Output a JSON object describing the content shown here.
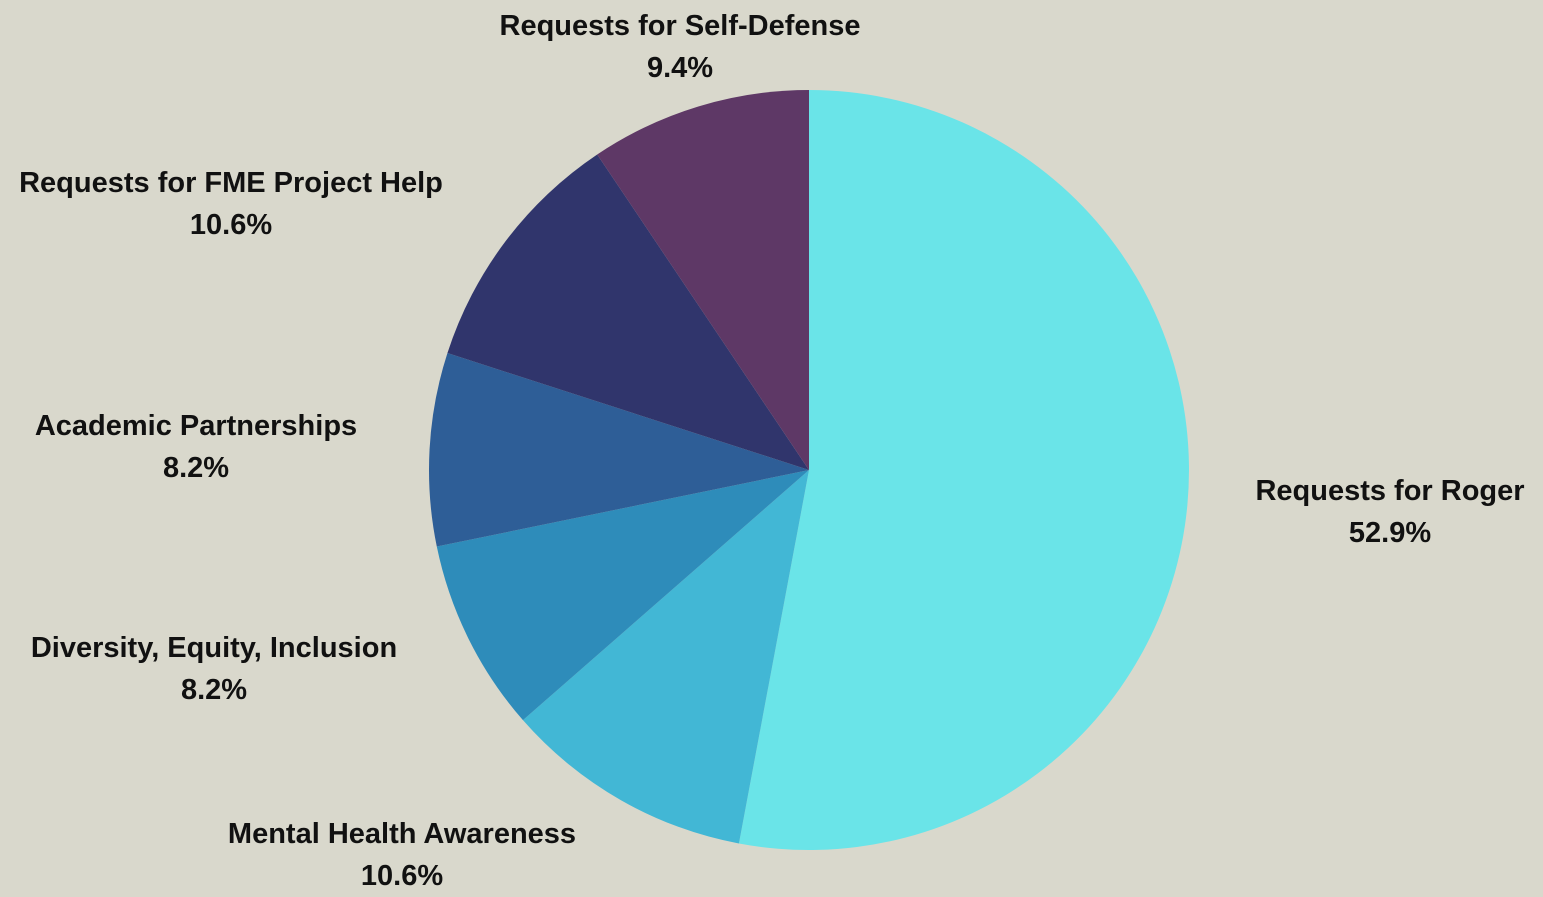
{
  "chart_data": {
    "type": "pie",
    "title": "",
    "start": "top",
    "direction": "clockwise",
    "slices": [
      {
        "label": "Requests for Roger",
        "value": 52.9,
        "value_label": "52.9%",
        "color": "#6AE4E8"
      },
      {
        "label": "Mental Health Awareness",
        "value": 10.6,
        "value_label": "10.6%",
        "color": "#42B7D5"
      },
      {
        "label": "Diversity, Equity, Inclusion",
        "value": 8.2,
        "value_label": "8.2%",
        "color": "#2E8CBA"
      },
      {
        "label": "Academic Partnerships",
        "value": 8.2,
        "value_label": "8.2%",
        "color": "#2E5E97"
      },
      {
        "label": "Requests for FME Project Help",
        "value": 10.6,
        "value_label": "10.6%",
        "color": "#30356C"
      },
      {
        "label": "Requests for Self-Defense",
        "value": 9.4,
        "value_label": "9.4%",
        "color": "#5E3866"
      }
    ]
  },
  "colors": {
    "background": "#D9D8CC",
    "label_text": "#111111"
  }
}
